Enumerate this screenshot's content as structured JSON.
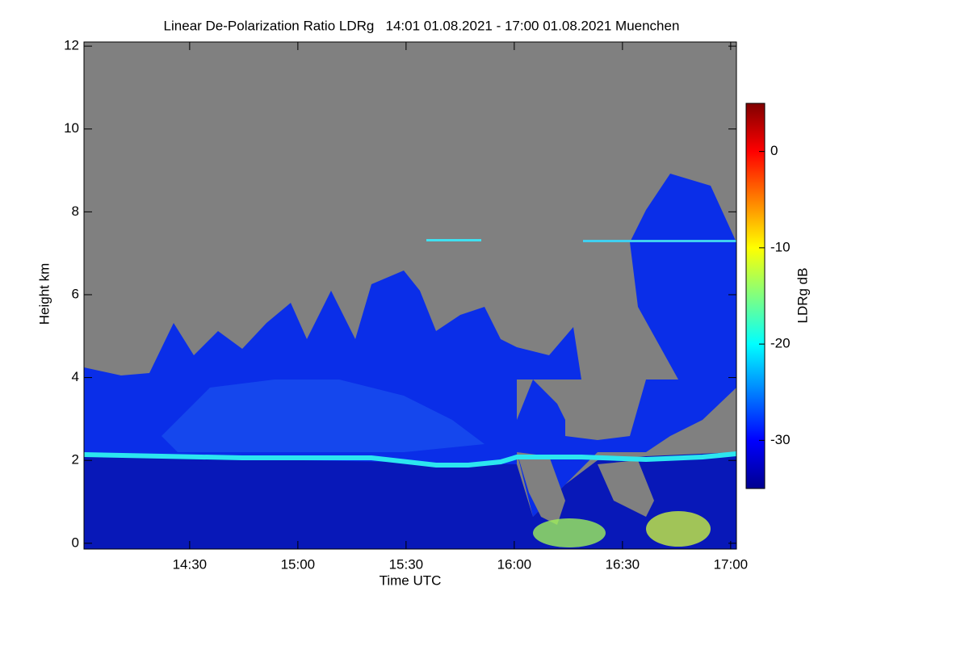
{
  "chart_data": {
    "type": "heatmap",
    "title": "Linear De-Polarization Ratio LDRg   14:01 01.08.2021 - 17:00 01.08.2021 Muenchen",
    "x_label": "Time UTC",
    "y_label": "Height km",
    "colorbar_label": "LDRg dB",
    "xlim": [
      840.7,
      1021.6
    ],
    "xticks": [
      {
        "value": 870,
        "label": "14:30"
      },
      {
        "value": 900,
        "label": "15:00"
      },
      {
        "value": 930,
        "label": "15:30"
      },
      {
        "value": 960,
        "label": "16:00"
      },
      {
        "value": 990,
        "label": "16:30"
      },
      {
        "value": 1020,
        "label": "17:00"
      }
    ],
    "ylim": [
      -0.14,
      12.1
    ],
    "yticks": [
      0,
      2,
      4,
      6,
      8,
      10,
      12
    ],
    "clim": [
      -35,
      5
    ],
    "cticks": [
      0,
      -10,
      -20,
      -30
    ],
    "colorscale": [
      "#00008f",
      "#0000ff",
      "#0080ff",
      "#00ffff",
      "#80ff80",
      "#ffff00",
      "#ff8000",
      "#ff0000",
      "#800000"
    ],
    "background_color": "#808080"
  }
}
